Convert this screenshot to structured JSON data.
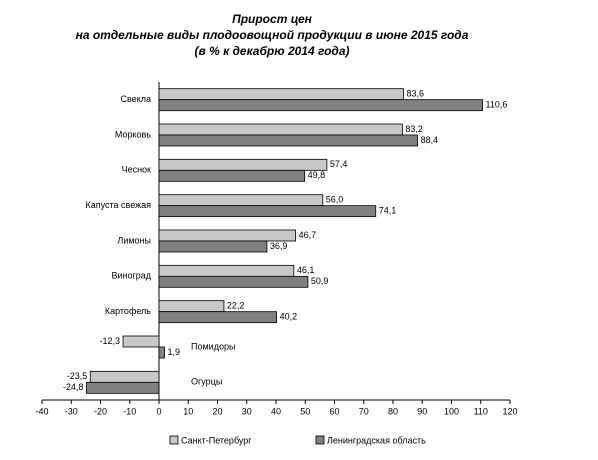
{
  "chart_data": {
    "type": "hbar",
    "title": [
      "Прирост цен",
      "на отдельные виды плодоовощной продукции в июне 2015 года",
      "(в % к декабрю 2014 года)"
    ],
    "categories": [
      "Свекла",
      "Морковь",
      "Чеснок",
      "Капуста свежая",
      "Лимоны",
      "Виноград",
      "Картофель",
      "Помидоры",
      "Огурцы"
    ],
    "series": [
      {
        "name": "Санкт-Петербург",
        "color": "#c8c8c8",
        "values": [
          83.6,
          83.2,
          57.4,
          56.0,
          46.7,
          46.1,
          22.2,
          -12.3,
          -23.5
        ],
        "value_labels": [
          "83,6",
          "83,2",
          "57,4",
          "56,0",
          "46,7",
          "46,1",
          "22,2",
          "-12,3",
          "-23,5"
        ]
      },
      {
        "name": "Ленинградская область",
        "color": "#808080",
        "values": [
          110.6,
          88.4,
          49.8,
          74.1,
          36.9,
          50.9,
          40.2,
          1.9,
          -24.8
        ],
        "value_labels": [
          "110,6",
          "88,4",
          "49,8",
          "74,1",
          "36,9",
          "50,9",
          "40,2",
          "1,9",
          "-24,8"
        ]
      }
    ],
    "xlim": [
      -40,
      120
    ],
    "xticks": [
      -40,
      -30,
      -20,
      -10,
      0,
      10,
      20,
      30,
      40,
      50,
      60,
      70,
      80,
      90,
      100,
      110,
      120
    ],
    "grid": false,
    "legend": "bottom"
  }
}
